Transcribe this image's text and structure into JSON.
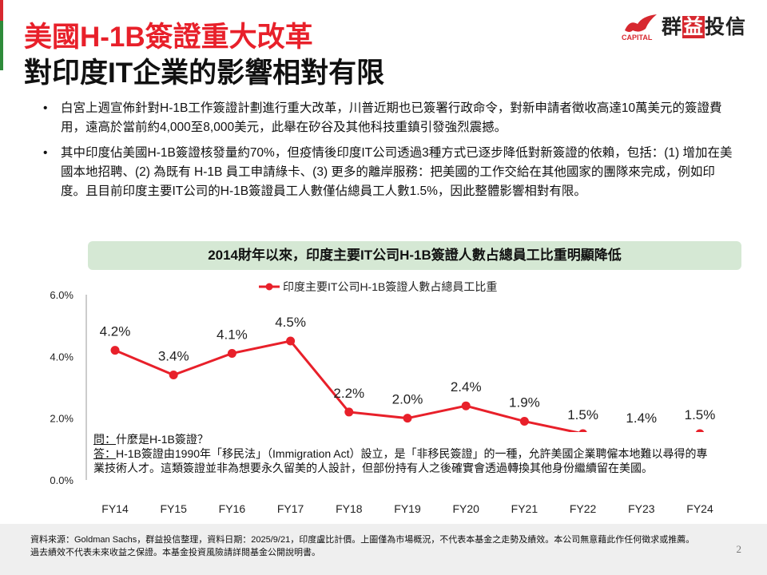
{
  "title_line1": "美國H-1B簽證重大改革",
  "title_line2": "對印度IT企業的影響相對有限",
  "logo": {
    "en": "CAPITAL",
    "cn_pre": "群",
    "cn_box": "益",
    "cn_post": "投信"
  },
  "bullets": [
    "白宮上週宣佈針對H-1B工作簽證計劃進行重大改革，川普近期也已簽署行政命令，對新申請者徵收高達10萬美元的簽證費用，遠高於當前約4,000至8,000美元，此舉在矽谷及其他科技重鎮引發強烈震撼。",
    "其中印度佔美國H-1B簽證核發量約70%，但疫情後印度IT公司透過3種方式已逐步降低對新簽證的依賴，包括：(1) 增加在美國本地招聘、(2) 為既有 H-1B 員工申請綠卡、(3) 更多的離岸服務：把美國的工作交給在其他國家的團隊來完成，例如印度。且目前印度主要IT公司的H-1B簽證員工人數僅佔總員工人數1.5%，因此整體影響相對有限。"
  ],
  "qa": {
    "q_label": "問：",
    "q": "什麼是H-1B簽證？",
    "a_label": "答：",
    "a": "H-1B簽證由1990年「移民法」（Immigration Act）設立，是「非移民簽證」的一種，允許美國企業聘僱本地難以尋得的專業技術人才。這類簽證並非為想要永久留美的人設計，但部份持有人之後確實會透過轉換其他身份繼續留在美國。"
  },
  "footer": "資料來源：Goldman Sachs，群益投信整理，資料日期：2025/9/21，印度盧比計價。上圖僅為市場概況，不代表本基金之走勢及績效。本公司無意藉此作任何徵求或推薦。過去績效不代表未來收益之保證。本基金投資風險請詳閱基金公開說明書。",
  "page_number": "2",
  "chart_data": {
    "type": "line",
    "title": "2014財年以來，印度主要IT公司H-1B簽證人數占總員工比重明顯降低",
    "categories": [
      "FY14",
      "FY15",
      "FY16",
      "FY17",
      "FY18",
      "FY19",
      "FY20",
      "FY21",
      "FY22",
      "FY23",
      "FY24"
    ],
    "series": [
      {
        "name": "印度主要IT公司H-1B簽證人數占總員工比重",
        "values": [
          4.2,
          3.4,
          4.1,
          4.5,
          2.2,
          2.0,
          2.4,
          1.9,
          1.5,
          1.4,
          1.5
        ],
        "color": "#e8202a"
      }
    ],
    "data_labels": [
      "4.2%",
      "3.4%",
      "4.1%",
      "4.5%",
      "2.2%",
      "2.0%",
      "2.4%",
      "1.9%",
      "1.5%",
      "1.4%",
      "1.5%"
    ],
    "yticks": [
      "0.0%",
      "2.0%",
      "4.0%",
      "6.0%"
    ],
    "ytick_values": [
      0,
      2,
      4,
      6
    ],
    "ylim": [
      0,
      6
    ],
    "legend": "top-center",
    "grid": false
  }
}
